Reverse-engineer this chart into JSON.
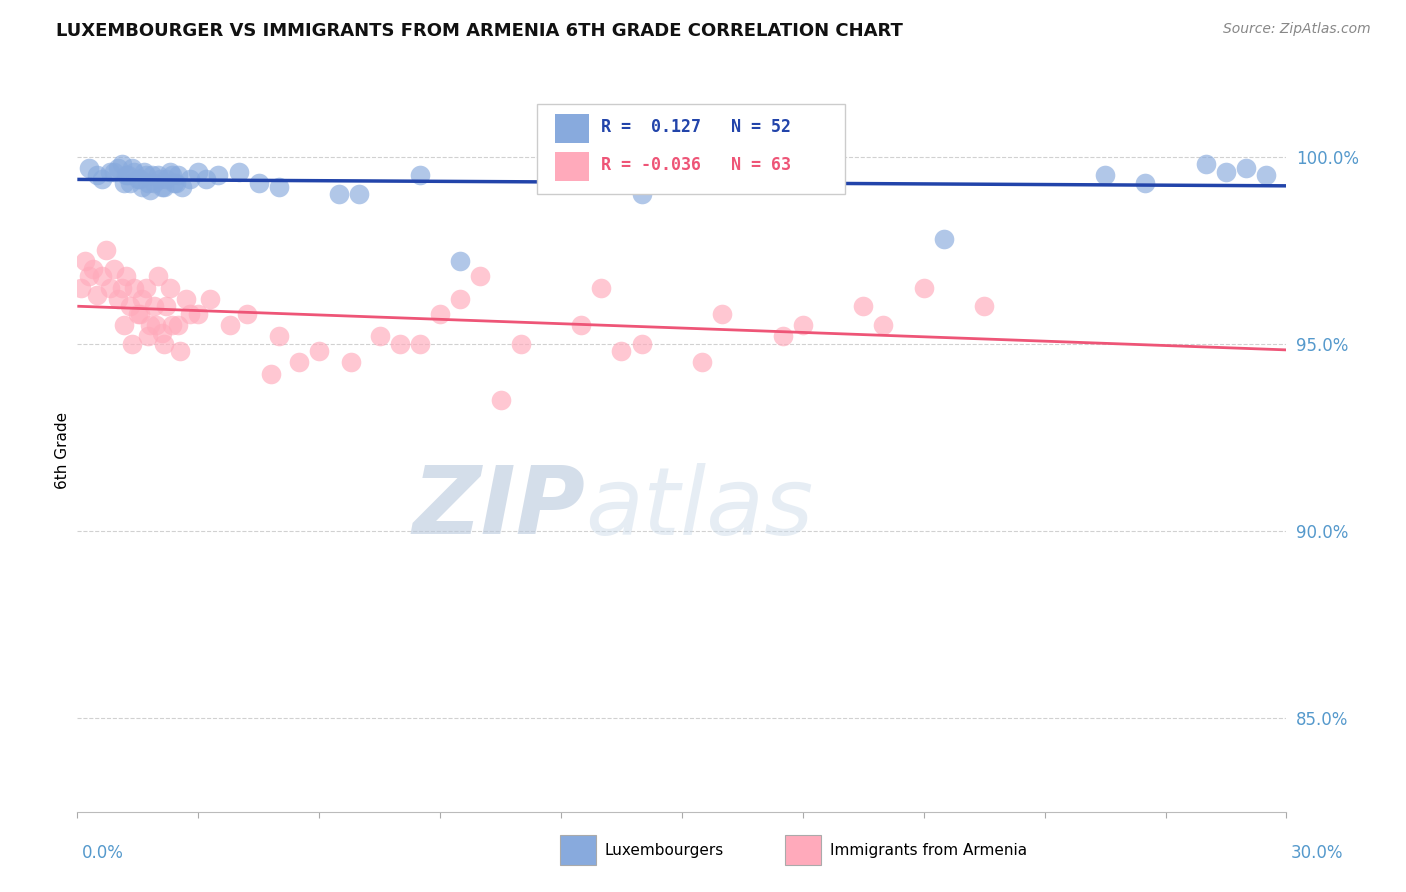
{
  "title": "LUXEMBOURGER VS IMMIGRANTS FROM ARMENIA 6TH GRADE CORRELATION CHART",
  "source": "Source: ZipAtlas.com",
  "ylabel": "6th Grade",
  "xlim": [
    0.0,
    30.0
  ],
  "ylim": [
    82.5,
    101.8
  ],
  "yticks": [
    85.0,
    90.0,
    95.0,
    100.0
  ],
  "ytick_labels": [
    "85.0%",
    "90.0%",
    "95.0%",
    "100.0%"
  ],
  "blue_R": 0.127,
  "blue_N": 52,
  "pink_R": -0.036,
  "pink_N": 63,
  "blue_color": "#88AADD",
  "pink_color": "#FFAABB",
  "blue_line_color": "#2244AA",
  "pink_line_color": "#EE5577",
  "watermark_zip": "ZIP",
  "watermark_atlas": "atlas",
  "watermark_color": "#C8DCF0",
  "blue_points_x": [
    0.3,
    0.5,
    0.8,
    1.0,
    1.1,
    1.2,
    1.3,
    1.4,
    1.5,
    1.6,
    1.7,
    1.8,
    1.9,
    2.0,
    2.1,
    2.2,
    2.3,
    2.4,
    2.5,
    2.6,
    2.8,
    3.0,
    3.5,
    4.5,
    5.0,
    7.0,
    8.5,
    9.5,
    14.0,
    21.5,
    25.5,
    26.5,
    28.0,
    28.5,
    29.0,
    29.5,
    0.6,
    0.9,
    1.15,
    1.25,
    1.35,
    1.55,
    1.65,
    1.75,
    1.85,
    2.05,
    2.15,
    2.35,
    2.45,
    3.2,
    4.0,
    6.5
  ],
  "blue_points_y": [
    99.7,
    99.5,
    99.6,
    99.7,
    99.8,
    99.5,
    99.3,
    99.6,
    99.4,
    99.2,
    99.5,
    99.1,
    99.3,
    99.5,
    99.2,
    99.4,
    99.6,
    99.3,
    99.5,
    99.2,
    99.4,
    99.6,
    99.5,
    99.3,
    99.2,
    99.0,
    99.5,
    97.2,
    99.0,
    97.8,
    99.5,
    99.3,
    99.8,
    99.6,
    99.7,
    99.5,
    99.4,
    99.6,
    99.3,
    99.5,
    99.7,
    99.4,
    99.6,
    99.3,
    99.5,
    99.4,
    99.2,
    99.5,
    99.3,
    99.4,
    99.6,
    99.0
  ],
  "pink_points_x": [
    0.1,
    0.2,
    0.3,
    0.4,
    0.5,
    0.6,
    0.7,
    0.8,
    0.9,
    1.0,
    1.1,
    1.2,
    1.3,
    1.4,
    1.5,
    1.6,
    1.7,
    1.8,
    1.9,
    2.0,
    2.1,
    2.2,
    2.3,
    2.5,
    2.7,
    3.0,
    3.3,
    3.8,
    4.2,
    5.5,
    6.0,
    7.5,
    8.5,
    9.5,
    10.0,
    11.0,
    12.5,
    13.5,
    14.0,
    16.0,
    17.5,
    18.0,
    19.5,
    21.0,
    22.5,
    2.8,
    5.0,
    6.8,
    8.0,
    9.0,
    10.5,
    4.8,
    13.0,
    15.5,
    20.0,
    1.15,
    1.35,
    1.55,
    1.75,
    1.95,
    2.15,
    2.35,
    2.55
  ],
  "pink_points_y": [
    96.5,
    97.2,
    96.8,
    97.0,
    96.3,
    96.8,
    97.5,
    96.5,
    97.0,
    96.2,
    96.5,
    96.8,
    96.0,
    96.5,
    95.8,
    96.2,
    96.5,
    95.5,
    96.0,
    96.8,
    95.3,
    96.0,
    96.5,
    95.5,
    96.2,
    95.8,
    96.2,
    95.5,
    95.8,
    94.5,
    94.8,
    95.2,
    95.0,
    96.2,
    96.8,
    95.0,
    95.5,
    94.8,
    95.0,
    95.8,
    95.2,
    95.5,
    96.0,
    96.5,
    96.0,
    95.8,
    95.2,
    94.5,
    95.0,
    95.8,
    93.5,
    94.2,
    96.5,
    94.5,
    95.5,
    95.5,
    95.0,
    95.8,
    95.2,
    95.5,
    95.0,
    95.5,
    94.8
  ]
}
